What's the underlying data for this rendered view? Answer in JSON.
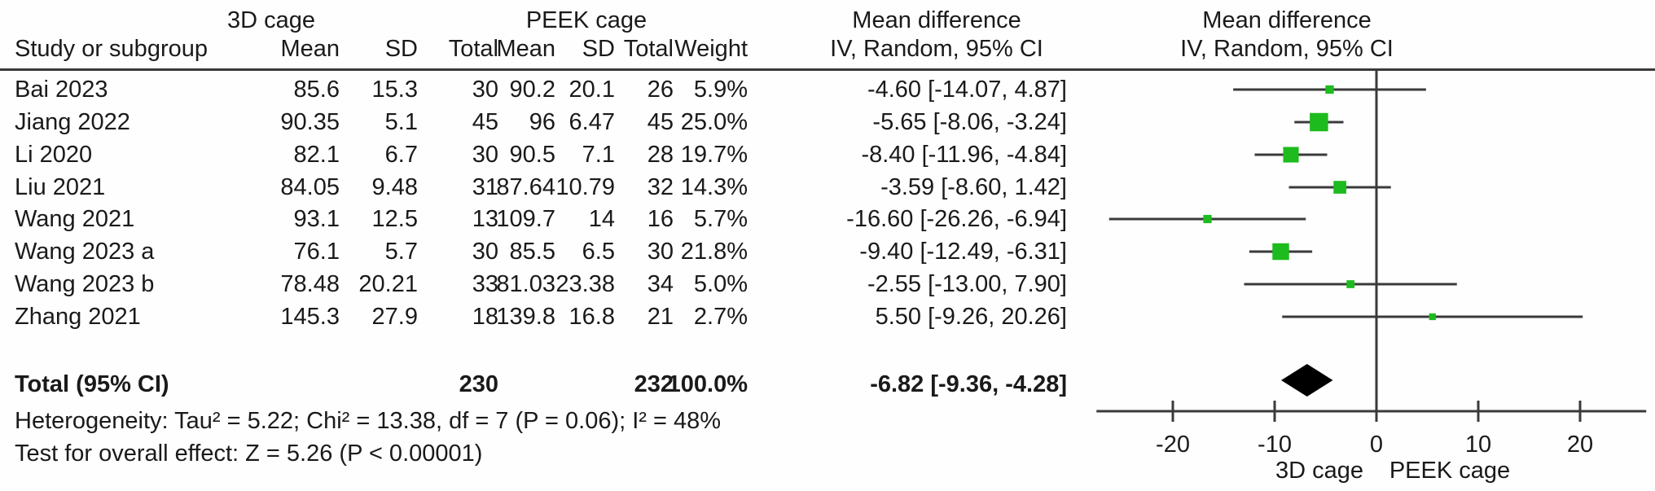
{
  "table": {
    "group_headers": {
      "experimental": "3D cage",
      "control": "PEEK cage",
      "md_left": "Mean difference",
      "md_right": "Mean difference"
    },
    "col_headers": {
      "study": "Study or subgroup",
      "mean": "Mean",
      "sd": "SD",
      "total": "Total",
      "weight": "Weight",
      "ci_method_left": "IV, Random, 95% CI",
      "ci_method_right": "IV, Random, 95% CI"
    },
    "rows": [
      {
        "study": "Bai 2023",
        "e_mean": "85.6",
        "e_sd": "15.3",
        "e_total": "30",
        "c_mean": "90.2",
        "c_sd": "20.1",
        "c_total": "26",
        "weight": "5.9%",
        "ci": "-4.60 [-14.07, 4.87]"
      },
      {
        "study": "Jiang 2022",
        "e_mean": "90.35",
        "e_sd": "5.1",
        "e_total": "45",
        "c_mean": "96",
        "c_sd": "6.47",
        "c_total": "45",
        "weight": "25.0%",
        "ci": "-5.65 [-8.06, -3.24]"
      },
      {
        "study": "Li 2020",
        "e_mean": "82.1",
        "e_sd": "6.7",
        "e_total": "30",
        "c_mean": "90.5",
        "c_sd": "7.1",
        "c_total": "28",
        "weight": "19.7%",
        "ci": "-8.40 [-11.96, -4.84]"
      },
      {
        "study": "Liu 2021",
        "e_mean": "84.05",
        "e_sd": "9.48",
        "e_total": "31",
        "c_mean": "87.64",
        "c_sd": "10.79",
        "c_total": "32",
        "weight": "14.3%",
        "ci": "-3.59 [-8.60, 1.42]"
      },
      {
        "study": "Wang 2021",
        "e_mean": "93.1",
        "e_sd": "12.5",
        "e_total": "13",
        "c_mean": "109.7",
        "c_sd": "14",
        "c_total": "16",
        "weight": "5.7%",
        "ci": "-16.60 [-26.26, -6.94]"
      },
      {
        "study": "Wang 2023 a",
        "e_mean": "76.1",
        "e_sd": "5.7",
        "e_total": "30",
        "c_mean": "85.5",
        "c_sd": "6.5",
        "c_total": "30",
        "weight": "21.8%",
        "ci": "-9.40 [-12.49, -6.31]"
      },
      {
        "study": "Wang 2023 b",
        "e_mean": "78.48",
        "e_sd": "20.21",
        "e_total": "33",
        "c_mean": "81.03",
        "c_sd": "23.38",
        "c_total": "34",
        "weight": "5.0%",
        "ci": "-2.55 [-13.00, 7.90]"
      },
      {
        "study": "Zhang 2021",
        "e_mean": "145.3",
        "e_sd": "27.9",
        "e_total": "18",
        "c_mean": "139.8",
        "c_sd": "16.8",
        "c_total": "21",
        "weight": "2.7%",
        "ci": "5.50 [-9.26, 20.26]"
      }
    ],
    "total_row": {
      "label": "Total (95% CI)",
      "e_total": "230",
      "c_total": "232",
      "weight": "100.0%",
      "ci": "-6.82 [-9.36, -4.28]"
    },
    "footer_heterogeneity": "Heterogeneity: Tau² = 5.22; Chi² = 13.38, df = 7 (P = 0.06); I² = 48%",
    "footer_overall_effect": "Test for overall effect: Z = 5.26 (P < 0.00001)"
  },
  "chart_data": {
    "type": "scatter",
    "subtype": "forest-plot",
    "effect_measure": "Mean difference IV, Random, 95% CI",
    "xlim": [
      -27.5,
      26.5
    ],
    "ticks": [
      -20,
      -10,
      0,
      10,
      20
    ],
    "xlabel_left": "3D cage",
    "xlabel_right": "PEEK cage",
    "grid": false,
    "studies": [
      {
        "name": "Bai 2023",
        "est": -4.6,
        "lo": -14.07,
        "hi": 4.87,
        "weight_pct": 5.9
      },
      {
        "name": "Jiang 2022",
        "est": -5.65,
        "lo": -8.06,
        "hi": -3.24,
        "weight_pct": 25.0
      },
      {
        "name": "Li 2020",
        "est": -8.4,
        "lo": -11.96,
        "hi": -4.84,
        "weight_pct": 19.7
      },
      {
        "name": "Liu 2021",
        "est": -3.59,
        "lo": -8.6,
        "hi": 1.42,
        "weight_pct": 14.3
      },
      {
        "name": "Wang 2021",
        "est": -16.6,
        "lo": -26.26,
        "hi": -6.94,
        "weight_pct": 5.7
      },
      {
        "name": "Wang 2023 a",
        "est": -9.4,
        "lo": -12.49,
        "hi": -6.31,
        "weight_pct": 21.8
      },
      {
        "name": "Wang 2023 b",
        "est": -2.55,
        "lo": -13.0,
        "hi": 7.9,
        "weight_pct": 5.0
      },
      {
        "name": "Zhang 2021",
        "est": 5.5,
        "lo": -9.26,
        "hi": 20.26,
        "weight_pct": 2.7
      }
    ],
    "total": {
      "name": "Total (95% CI)",
      "est": -6.82,
      "lo": -9.36,
      "hi": -4.28,
      "weight_pct": 100.0
    }
  },
  "colors": {
    "marker_green": "#1dbb1d",
    "diamond_black": "#000000",
    "line_dark": "#3a3a3a",
    "text": "#1a1a1a"
  }
}
